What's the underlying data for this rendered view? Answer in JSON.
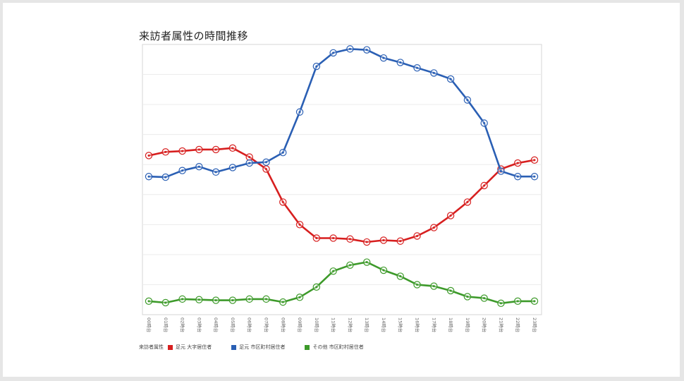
{
  "title": "来訪者属性の時間推移",
  "legend": {
    "title": "来訪者属性",
    "items": [
      {
        "label": "足元 大字居住者",
        "color": "#d71f1f"
      },
      {
        "label": "足元 市区町村居住者",
        "color": "#2a5fb4"
      },
      {
        "label": "その他 市区町村居住者",
        "color": "#3d9a2a"
      }
    ]
  },
  "chart_data": {
    "type": "line",
    "title": "来訪者属性の時間推移",
    "xlabel": "",
    "ylabel": "",
    "ylim": [
      0,
      9
    ],
    "grid": true,
    "legend_position": "bottom",
    "categories": [
      "00時台",
      "01時台",
      "02時台",
      "03時台",
      "04時台",
      "05時台",
      "06時台",
      "07時台",
      "08時台",
      "09時台",
      "10時台",
      "11時台",
      "12時台",
      "13時台",
      "14時台",
      "15時台",
      "16時台",
      "17時台",
      "18時台",
      "19時台",
      "20時台",
      "21時台",
      "22時台",
      "23時台"
    ],
    "series": [
      {
        "name": "足元 大字居住者",
        "color": "#d71f1f",
        "values": [
          5.3,
          5.42,
          5.45,
          5.5,
          5.5,
          5.55,
          5.25,
          4.85,
          3.75,
          3.0,
          2.55,
          2.55,
          2.52,
          2.42,
          2.48,
          2.45,
          2.62,
          2.9,
          3.3,
          3.75,
          4.3,
          4.85,
          5.05,
          5.15
        ]
      },
      {
        "name": "足元 市区町村居住者",
        "color": "#2a5fb4",
        "values": [
          4.6,
          4.58,
          4.8,
          4.93,
          4.75,
          4.9,
          5.05,
          5.08,
          5.4,
          6.75,
          8.27,
          8.72,
          8.85,
          8.82,
          8.55,
          8.4,
          8.22,
          8.05,
          7.85,
          7.15,
          6.38,
          4.78,
          4.6,
          4.6
        ]
      },
      {
        "name": "その他 市区町村居住者",
        "color": "#3d9a2a",
        "values": [
          0.45,
          0.4,
          0.52,
          0.5,
          0.48,
          0.48,
          0.52,
          0.52,
          0.42,
          0.58,
          0.92,
          1.45,
          1.65,
          1.75,
          1.48,
          1.28,
          1.0,
          0.95,
          0.8,
          0.6,
          0.55,
          0.38,
          0.45,
          0.45
        ]
      }
    ]
  }
}
